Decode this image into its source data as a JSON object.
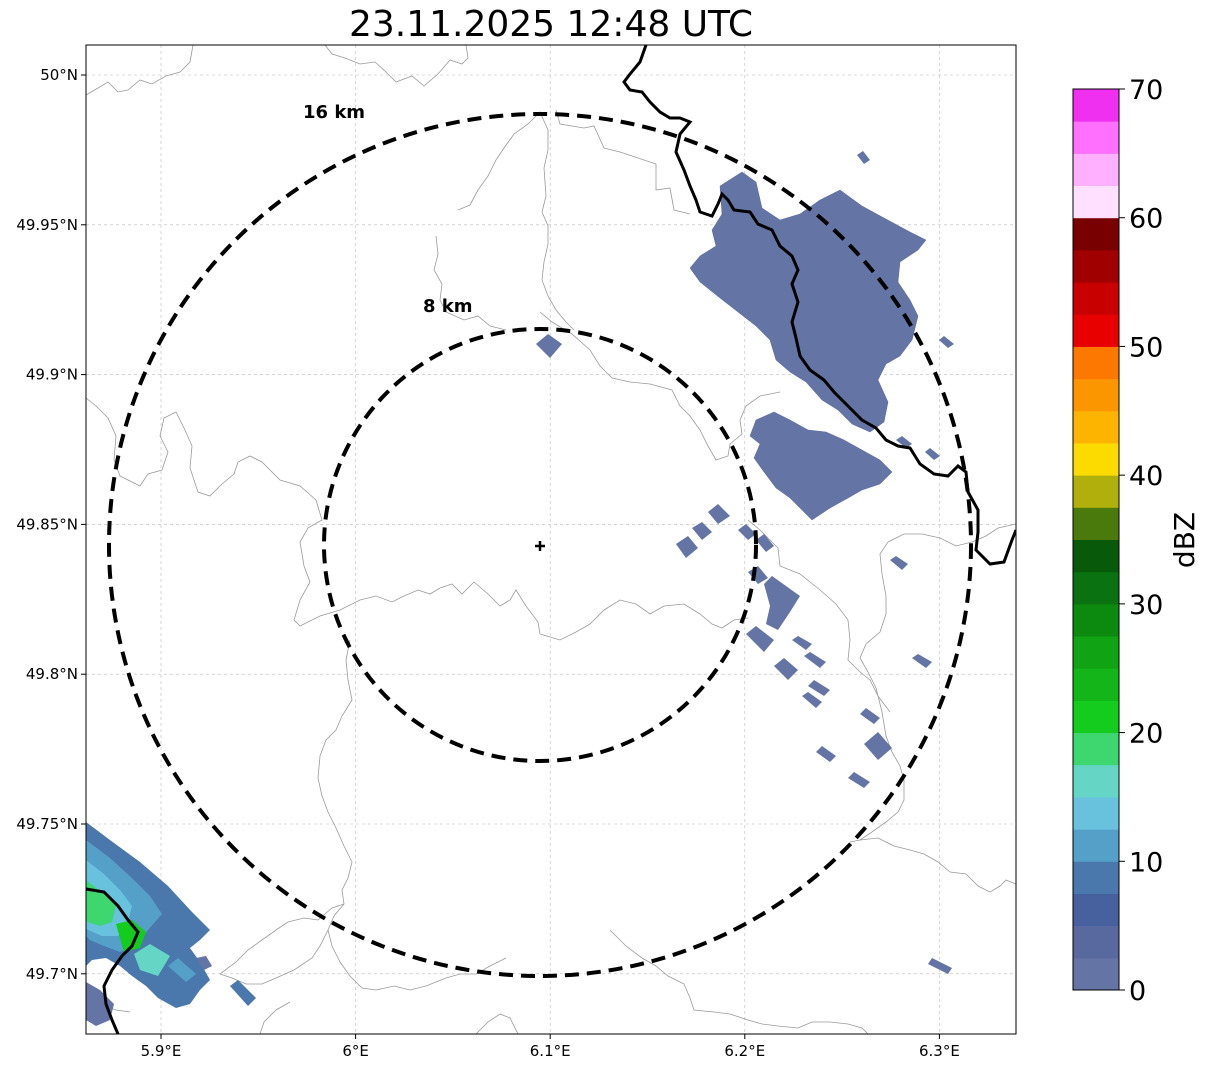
{
  "title": "23.11.2025 12:48 UTC",
  "map": {
    "lon_range": [
      5.86,
      6.34
    ],
    "lat_range": [
      49.68,
      50.01
    ],
    "x_ticks": [
      {
        "value": 5.9,
        "label": "5.9°E"
      },
      {
        "value": 6.0,
        "label": "6°E"
      },
      {
        "value": 6.1,
        "label": "6.1°E"
      },
      {
        "value": 6.2,
        "label": "6.2°E"
      },
      {
        "value": 6.3,
        "label": "6.3°E"
      }
    ],
    "y_ticks": [
      {
        "value": 50.0,
        "label": "50°N"
      },
      {
        "value": 49.95,
        "label": "49.95°N"
      },
      {
        "value": 49.9,
        "label": "49.9°N"
      },
      {
        "value": 49.85,
        "label": "49.85°N"
      },
      {
        "value": 49.8,
        "label": "49.8°N"
      },
      {
        "value": 49.75,
        "label": "49.75°N"
      },
      {
        "value": 49.7,
        "label": "49.7°N"
      }
    ],
    "grid": true,
    "radar_site": {
      "lon": 6.095,
      "lat": 49.843
    },
    "range_rings": [
      {
        "radius_km": 16,
        "label": "16 km"
      },
      {
        "radius_km": 8,
        "label": "8 km"
      }
    ]
  },
  "colorbar": {
    "label": "dBZ",
    "min": 0,
    "max": 70,
    "ticks": [
      "0",
      "10",
      "20",
      "30",
      "40",
      "50",
      "60",
      "70"
    ],
    "colors": [
      "#6474a4",
      "#5869a0",
      "#47619f",
      "#4a78ac",
      "#55a0c8",
      "#68c2de",
      "#65d6c6",
      "#3ed66e",
      "#14cc1d",
      "#14b518",
      "#10a414",
      "#0c8a10",
      "#0a7210",
      "#085a0a",
      "#4a7a0c",
      "#b0b00c",
      "#fcdc00",
      "#fcb400",
      "#fc9600",
      "#fc7800",
      "#e80000",
      "#c80000",
      "#a00000",
      "#780000",
      "#ffe0ff",
      "#ffb0ff",
      "#ff70ff",
      "#f030f0"
    ]
  },
  "echo_colors": {
    "weak": "#6474a4",
    "weak2": "#47619f",
    "mid": "#55a0c8",
    "light": "#68c2de",
    "teal": "#65d6c6",
    "green": "#3ed66e",
    "bright": "#14cc1d"
  }
}
